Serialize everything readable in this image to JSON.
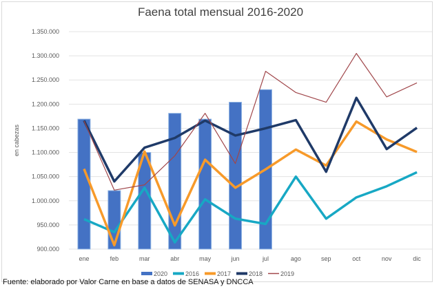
{
  "chart_data": {
    "type": "bar+line",
    "title": "Faena total mensual 2016-2020",
    "xlabel": "",
    "ylabel": "en cabezas",
    "ylim": [
      900000,
      1350000
    ],
    "ytick_step": 50000,
    "ytick_labels": [
      "900.000",
      "950.000",
      "1.000.000",
      "1.050.000",
      "1.100.000",
      "1.150.000",
      "1.200.000",
      "1.250.000",
      "1.300.000",
      "1.350.000"
    ],
    "grid": true,
    "legend_position": "bottom",
    "categories": [
      "ene",
      "feb",
      "mar",
      "abr",
      "may",
      "jun",
      "jul",
      "ago",
      "sep",
      "oct",
      "nov",
      "dic"
    ],
    "series": [
      {
        "name": "2020",
        "kind": "bar",
        "color": "#4472c4",
        "values": [
          1169000,
          1021000,
          1100000,
          1181000,
          1169000,
          1204000,
          1230000,
          null,
          null,
          null,
          null,
          null
        ]
      },
      {
        "name": "2016",
        "kind": "line",
        "color": "#17a8c4",
        "width": 3.5,
        "values": [
          962000,
          935000,
          1027000,
          914000,
          1003000,
          963000,
          952000,
          1050000,
          963000,
          1007000,
          1030000,
          1059000
        ]
      },
      {
        "name": "2017",
        "kind": "line",
        "color": "#f79a2a",
        "width": 3.5,
        "values": [
          1066000,
          908000,
          1102000,
          949000,
          1085000,
          1027000,
          1065000,
          1106000,
          1073000,
          1164000,
          1127000,
          1101000
        ]
      },
      {
        "name": "2018",
        "kind": "line",
        "color": "#1f3a68",
        "width": 3.5,
        "values": [
          1166000,
          1040000,
          1110000,
          1130000,
          1166000,
          1135000,
          1150000,
          1167000,
          1060000,
          1213000,
          1107000,
          1151000
        ]
      },
      {
        "name": "2019",
        "kind": "line",
        "color": "#a0464a",
        "width": 1.2,
        "values": [
          1165000,
          1022000,
          1033000,
          1093000,
          1181000,
          1077000,
          1268000,
          1224000,
          1204000,
          1305000,
          1215000,
          1244000
        ]
      }
    ]
  },
  "source": "Fuente: elaborado por Valor Carne en base a datos de SENASA y DNCCA"
}
